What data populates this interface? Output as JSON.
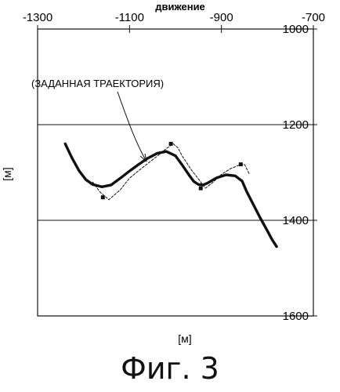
{
  "chart_data": {
    "type": "line",
    "title": "движение",
    "xlabel": "[м]",
    "ylabel": "[м]",
    "xlim": [
      -1300,
      -700
    ],
    "ylim": [
      1000,
      1600
    ],
    "y_inverted": true,
    "x_ticks": [
      "-1300",
      "-1100",
      "-900",
      "-700"
    ],
    "x_tick_values": [
      -1300,
      -1100,
      -900,
      -700
    ],
    "y_ticks": [
      "1000",
      "1200",
      "1400",
      "1600"
    ],
    "y_tick_values": [
      1000,
      1200,
      1400,
      1600
    ],
    "grid": "horizontal",
    "annotation": "(ЗАДАННАЯ ТРАЕКТОРИЯ)",
    "series": [
      {
        "style": "solid-thick",
        "x": [
          -1240,
          -1225,
          -1210,
          -1195,
          -1180,
          -1160,
          -1140,
          -1120,
          -1100,
          -1080,
          -1060,
          -1040,
          -1020,
          -1000,
          -985,
          -970,
          -960,
          -950,
          -940,
          -930,
          -910,
          -890,
          -870,
          -855,
          -845,
          -830,
          -815,
          -800,
          -790,
          -780
        ],
        "y": [
          1240,
          1270,
          1296,
          1315,
          1325,
          1330,
          1326,
          1312,
          1297,
          1283,
          1270,
          1260,
          1256,
          1265,
          1285,
          1306,
          1319,
          1325,
          1326,
          1322,
          1311,
          1305,
          1307,
          1318,
          1340,
          1368,
          1396,
          1422,
          1440,
          1455
        ]
      },
      {
        "style": "dashed-thin",
        "x": [
          -1180,
          -1165,
          -1145,
          -1120,
          -1100,
          -1080,
          -1060,
          -1040,
          -1020,
          -1005,
          -995,
          -985,
          -965,
          -945,
          -935,
          -920,
          -900,
          -880,
          -860,
          -850,
          -840
        ],
        "y": [
          1320,
          1340,
          1357,
          1336,
          1312,
          1296,
          1281,
          1266,
          1250,
          1240,
          1248,
          1266,
          1295,
          1320,
          1333,
          1322,
          1304,
          1292,
          1284,
          1283,
          1302
        ]
      }
    ],
    "markers": [
      {
        "x": -1158,
        "y": 1352
      },
      {
        "x": -1010,
        "y": 1240
      },
      {
        "x": -945,
        "y": 1333
      },
      {
        "x": -858,
        "y": 1283
      }
    ]
  },
  "caption": "Фиг. 3"
}
